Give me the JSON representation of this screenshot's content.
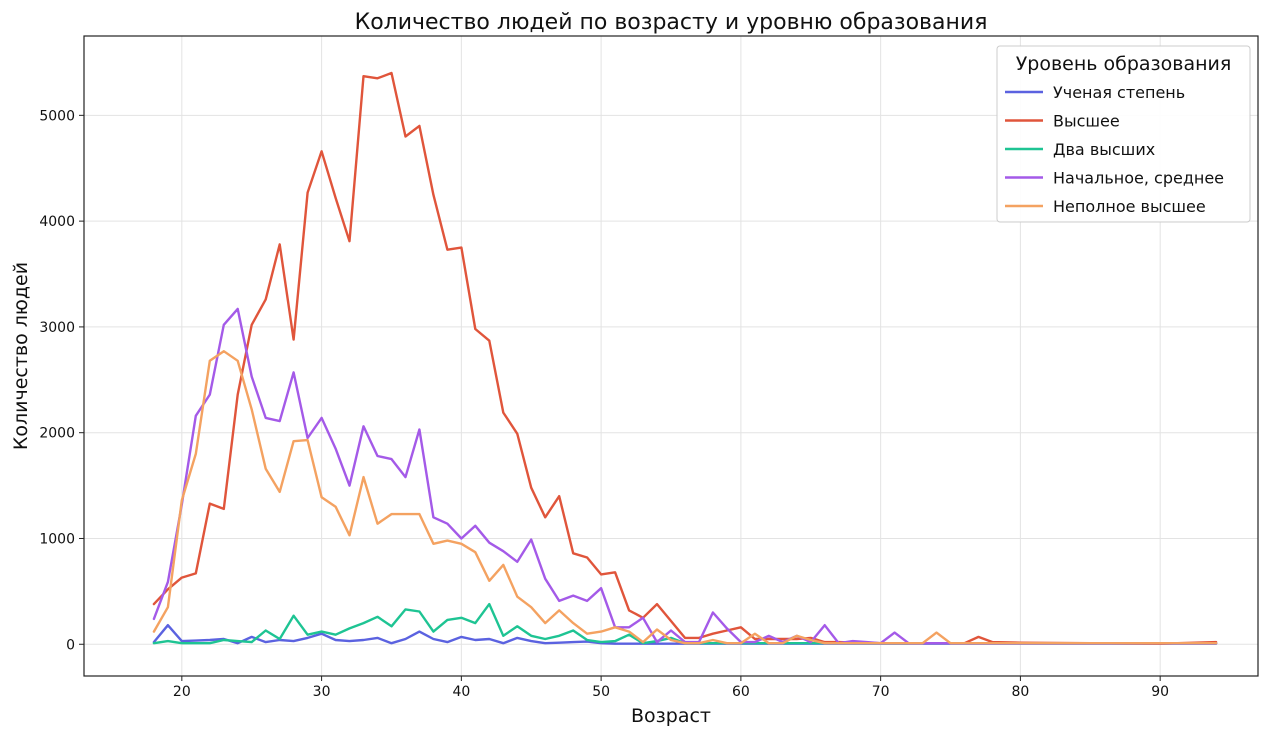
{
  "chart_data": {
    "type": "line",
    "title": "Количество людей по возрасту и уровню образования",
    "xlabel": "Возраст",
    "ylabel": "Количество людей",
    "xlim": [
      13,
      97
    ],
    "ylim": [
      -300,
      5750
    ],
    "xticks": [
      20,
      30,
      40,
      50,
      60,
      70,
      80,
      90
    ],
    "yticks": [
      0,
      1000,
      2000,
      3000,
      4000,
      5000
    ],
    "grid": true,
    "legend": {
      "title": "Уровень образования",
      "position": "top-right"
    },
    "series": [
      {
        "name": "Ученая степень",
        "color": "#5b62e0",
        "x": [
          18,
          19,
          20,
          21,
          22,
          23,
          24,
          25,
          26,
          27,
          28,
          29,
          30,
          31,
          32,
          33,
          34,
          35,
          36,
          37,
          38,
          39,
          40,
          41,
          42,
          43,
          44,
          45,
          46,
          47,
          48,
          49,
          50,
          51,
          52,
          53,
          54,
          55,
          56,
          57,
          58,
          59,
          60,
          61,
          62,
          63,
          64,
          65,
          66,
          67,
          68,
          69,
          70,
          71,
          72,
          73,
          74,
          75,
          94
        ],
        "y": [
          20,
          180,
          30,
          35,
          40,
          50,
          10,
          70,
          20,
          40,
          30,
          60,
          100,
          40,
          30,
          40,
          60,
          10,
          50,
          120,
          50,
          20,
          70,
          40,
          50,
          10,
          60,
          30,
          10,
          15,
          20,
          25,
          10,
          5,
          5,
          5,
          5,
          5,
          5,
          5,
          5,
          5,
          5,
          5,
          5,
          5,
          5,
          5,
          5,
          5,
          5,
          5,
          5,
          5,
          5,
          5,
          5,
          5,
          5
        ]
      },
      {
        "name": "Высшее",
        "color": "#e0553b",
        "x": [
          18,
          19,
          20,
          21,
          22,
          23,
          24,
          25,
          26,
          27,
          28,
          29,
          30,
          31,
          32,
          33,
          34,
          35,
          36,
          37,
          38,
          39,
          40,
          41,
          42,
          43,
          44,
          45,
          46,
          47,
          48,
          49,
          50,
          51,
          52,
          53,
          54,
          55,
          56,
          57,
          58,
          59,
          60,
          61,
          62,
          63,
          64,
          65,
          66,
          67,
          70,
          75,
          76,
          77,
          78,
          80,
          85,
          90,
          94
        ],
        "y": [
          380,
          520,
          630,
          670,
          1330,
          1280,
          2360,
          3020,
          3260,
          3780,
          2880,
          4270,
          4660,
          4220,
          3810,
          5370,
          5350,
          5400,
          4800,
          4900,
          4250,
          3730,
          3750,
          2980,
          2870,
          2190,
          1990,
          1480,
          1200,
          1400,
          860,
          820,
          660,
          680,
          320,
          250,
          380,
          220,
          60,
          60,
          100,
          130,
          160,
          50,
          50,
          50,
          50,
          60,
          20,
          20,
          10,
          10,
          10,
          70,
          20,
          15,
          10,
          5,
          20
        ]
      },
      {
        "name": "Два высших",
        "color": "#1ec493",
        "x": [
          18,
          19,
          20,
          21,
          22,
          23,
          24,
          25,
          26,
          27,
          28,
          29,
          30,
          31,
          32,
          33,
          34,
          35,
          36,
          37,
          38,
          39,
          40,
          41,
          42,
          43,
          44,
          45,
          46,
          47,
          48,
          49,
          50,
          51,
          52,
          53,
          54,
          55,
          56,
          57,
          58,
          59,
          60,
          61,
          62,
          63,
          64,
          65,
          66,
          70,
          75,
          94
        ],
        "y": [
          10,
          30,
          10,
          10,
          10,
          40,
          30,
          20,
          130,
          50,
          270,
          90,
          120,
          90,
          150,
          200,
          260,
          170,
          330,
          310,
          120,
          230,
          250,
          200,
          380,
          80,
          170,
          80,
          50,
          80,
          130,
          40,
          20,
          30,
          90,
          10,
          30,
          60,
          10,
          10,
          10,
          10,
          10,
          10,
          10,
          10,
          10,
          10,
          10,
          10,
          10,
          10
        ]
      },
      {
        "name": "Начальное, среднее",
        "color": "#a45ae8",
        "x": [
          18,
          19,
          20,
          21,
          22,
          23,
          24,
          25,
          26,
          27,
          28,
          29,
          30,
          31,
          32,
          33,
          34,
          35,
          36,
          37,
          38,
          39,
          40,
          41,
          42,
          43,
          44,
          45,
          46,
          47,
          48,
          49,
          50,
          51,
          52,
          53,
          54,
          55,
          56,
          57,
          58,
          59,
          60,
          61,
          62,
          63,
          64,
          65,
          66,
          67,
          68,
          69,
          70,
          71,
          72,
          73,
          74,
          75,
          94
        ],
        "y": [
          240,
          590,
          1320,
          2160,
          2360,
          3020,
          3170,
          2530,
          2140,
          2110,
          2570,
          1950,
          2140,
          1850,
          1500,
          2060,
          1780,
          1750,
          1580,
          2030,
          1200,
          1140,
          1000,
          1120,
          960,
          880,
          780,
          990,
          620,
          410,
          460,
          410,
          530,
          160,
          160,
          250,
          20,
          130,
          20,
          20,
          300,
          150,
          20,
          20,
          80,
          20,
          80,
          20,
          180,
          10,
          30,
          20,
          10,
          110,
          10,
          10,
          10,
          10,
          10
        ]
      },
      {
        "name": "Неполное высшее",
        "color": "#f4a261",
        "x": [
          18,
          19,
          20,
          21,
          22,
          23,
          24,
          25,
          26,
          27,
          28,
          29,
          30,
          31,
          32,
          33,
          34,
          35,
          36,
          37,
          38,
          39,
          40,
          41,
          42,
          43,
          44,
          45,
          46,
          47,
          48,
          49,
          50,
          51,
          52,
          53,
          54,
          55,
          56,
          57,
          58,
          59,
          60,
          61,
          62,
          63,
          64,
          65,
          66,
          70,
          72,
          73,
          74,
          75,
          94
        ],
        "y": [
          120,
          350,
          1360,
          1800,
          2680,
          2770,
          2680,
          2220,
          1660,
          1440,
          1920,
          1930,
          1390,
          1300,
          1030,
          1580,
          1140,
          1230,
          1230,
          1230,
          950,
          980,
          950,
          870,
          600,
          750,
          450,
          350,
          200,
          320,
          200,
          100,
          120,
          160,
          120,
          20,
          140,
          40,
          10,
          10,
          40,
          10,
          10,
          100,
          10,
          10,
          80,
          40,
          10,
          10,
          10,
          10,
          110,
          10,
          10
        ]
      }
    ]
  }
}
